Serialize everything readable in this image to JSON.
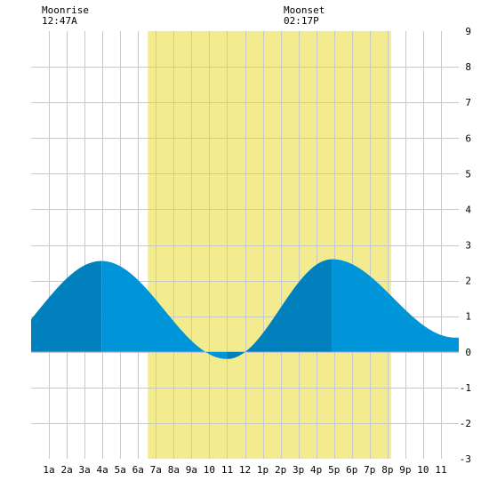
{
  "moonrise": {
    "label": "Moonrise",
    "time": "12:47A"
  },
  "moonset": {
    "label": "Moonset",
    "time": "02:17P"
  },
  "colors": {
    "daylight": "#f2ec8f",
    "tide_rising": "#0080bd",
    "tide_falling": "#0095d8",
    "grid": "#c8c8c8",
    "background": "#ffffff"
  },
  "chart_data": {
    "type": "area",
    "title": "",
    "xlabel": "",
    "ylabel": "",
    "x_tick_labels": [
      "1a",
      "2a",
      "3a",
      "4a",
      "5a",
      "6a",
      "7a",
      "8a",
      "9a",
      "10",
      "11",
      "12",
      "1p",
      "2p",
      "3p",
      "4p",
      "5p",
      "6p",
      "7p",
      "8p",
      "9p",
      "10",
      "11"
    ],
    "y_ticks": [
      9,
      8,
      7,
      6,
      5,
      4,
      3,
      2,
      1,
      0,
      -1,
      -2,
      -3
    ],
    "xlim": [
      0,
      24
    ],
    "ylim": [
      -3,
      9
    ],
    "grid": true,
    "y_axis_side": "right",
    "daylight": {
      "start_hour": 6.55,
      "end_hour": 20.2
    },
    "tide_extremes": [
      {
        "hour": 3.95,
        "height": 2.55,
        "kind": "high"
      },
      {
        "hour": 11.0,
        "height": -0.2,
        "kind": "low"
      },
      {
        "hour": 16.9,
        "height": 2.6,
        "kind": "high"
      },
      {
        "hour": 23.8,
        "height": 0.4,
        "kind": "low"
      }
    ],
    "series": [
      {
        "x": [
          0,
          1,
          2,
          3,
          3.95,
          5,
          6,
          7,
          8,
          9,
          10,
          11,
          12,
          13,
          14,
          15,
          16,
          16.9,
          18,
          19,
          20,
          21,
          22,
          23,
          24
        ],
        "values": [
          0.75,
          1.35,
          1.95,
          2.4,
          2.55,
          2.45,
          2.1,
          1.55,
          0.95,
          0.4,
          0.0,
          -0.2,
          0.0,
          0.55,
          1.3,
          2.0,
          2.5,
          2.6,
          2.35,
          1.95,
          1.45,
          0.95,
          0.6,
          0.43,
          0.45
        ]
      }
    ]
  }
}
